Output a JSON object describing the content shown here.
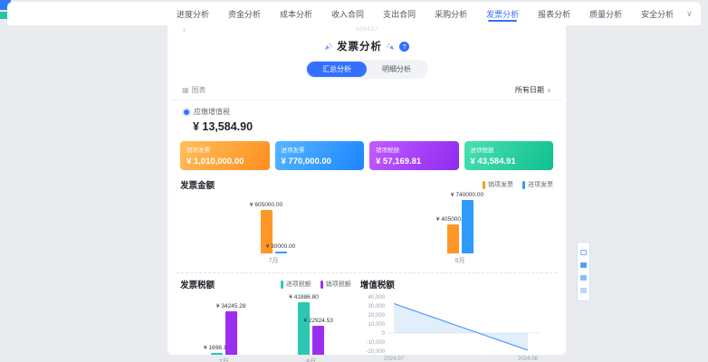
{
  "tabbar": {
    "tabs": [
      {
        "label": "进度分析",
        "active": false
      },
      {
        "label": "资金分析",
        "active": false
      },
      {
        "label": "成本分析",
        "active": false
      },
      {
        "label": "收入合同",
        "active": false
      },
      {
        "label": "支出合同",
        "active": false
      },
      {
        "label": "采购分析",
        "active": false
      },
      {
        "label": "发票分析",
        "active": true
      },
      {
        "label": "报表分析",
        "active": false
      },
      {
        "label": "质量分析",
        "active": false
      },
      {
        "label": "安全分析",
        "active": false
      }
    ],
    "overflow_icon": "∨"
  },
  "watermark": {
    "left_mark": "+",
    "code": "408437"
  },
  "header": {
    "title": "发票分析",
    "help_icon": "?"
  },
  "view_toggle": {
    "options": [
      {
        "label": "汇总分析",
        "active": true
      },
      {
        "label": "明细分析",
        "active": false
      }
    ]
  },
  "toolbar": {
    "chart_icon": "▦",
    "chart_label": "图表",
    "date_filter": "所有日期",
    "chevron_icon": "∨"
  },
  "summary": {
    "label": "应缴增值税",
    "value": "¥ 13,584.90"
  },
  "cards": [
    {
      "label": "销项发票",
      "value": "¥ 1,010,000.00",
      "color_from": "#ffbe5c",
      "color_to": "#ff8f1f"
    },
    {
      "label": "进项发票",
      "value": "¥ 770,000.00",
      "color_from": "#55b6ff",
      "color_to": "#1c86ff"
    },
    {
      "label": "销项税额",
      "value": "¥ 57,169.81",
      "color_from": "#c35bff",
      "color_to": "#8f2bf0"
    },
    {
      "label": "进项税额",
      "value": "¥ 43,584.91",
      "color_from": "#49e0b3",
      "color_to": "#10bf8f"
    }
  ],
  "chart_data": [
    {
      "type": "bar",
      "title": "发票金额",
      "categories": [
        "7月",
        "8月"
      ],
      "series": [
        {
          "name": "销项发票",
          "color": "#ff9626",
          "values": [
            605000.0,
            405000.0
          ],
          "labels": [
            "¥ 605000.00",
            "¥ 405000.00"
          ]
        },
        {
          "name": "进项发票",
          "color": "#2f9bff",
          "values": [
            30000.0,
            740000.0
          ],
          "labels": [
            "¥ 30000.00",
            "¥ 740000.00"
          ]
        }
      ],
      "ylim": [
        0,
        780000
      ],
      "legend_position": "top-right",
      "grid": false
    },
    {
      "type": "bar",
      "title": "发票税额",
      "categories": [
        "7月",
        "8月"
      ],
      "series": [
        {
          "name": "进项税额",
          "color": "#2cc7b2",
          "values": [
            1698.11,
            41886.8
          ],
          "labels": [
            "¥ 1698.11",
            "¥ 41886.80"
          ]
        },
        {
          "name": "销项税额",
          "color": "#9a2ff0",
          "values": [
            34245.28,
            22924.53
          ],
          "labels": [
            "¥ 34245.28",
            "¥ 22924.53"
          ]
        }
      ],
      "ylim": [
        0,
        46000
      ],
      "legend_position": "top-right",
      "grid": false
    },
    {
      "type": "line",
      "title": "增值税额",
      "x": [
        "2024-07",
        "2024-08"
      ],
      "series": [
        {
          "name": "增值税额",
          "color": "#4f9bf5",
          "values": [
            32547.17,
            -18962.27
          ]
        }
      ],
      "yticks": [
        40000,
        30000,
        20000,
        10000,
        0,
        -10000,
        -20000
      ],
      "ytick_labels": [
        "40,000",
        "30,000",
        "20,000",
        "10,000",
        "0",
        "-10,000",
        "-20,000"
      ],
      "ylim": [
        -20000,
        40000
      ],
      "area_fill": "#bcd9f8",
      "legend_position": "none",
      "grid": false
    }
  ]
}
